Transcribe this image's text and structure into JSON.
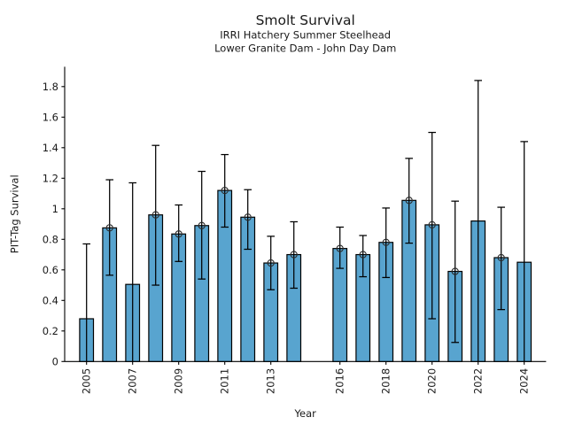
{
  "chart_data": {
    "type": "bar",
    "title": "Smolt Survival",
    "subtitle_lines": [
      "IRRI Hatchery Summer Steelhead",
      "Lower Granite Dam - John Day Dam"
    ],
    "xlabel": "Year",
    "ylabel": "PIT-Tag Survival",
    "xlim": [
      2004.05,
      2024.95
    ],
    "ylim": [
      0,
      1.93
    ],
    "grid": false,
    "legend": null,
    "missing_years": [
      2015
    ],
    "xticks": {
      "values": [
        2005,
        2007,
        2009,
        2011,
        2013,
        2016,
        2018,
        2020,
        2022,
        2024
      ],
      "labels": [
        "2005",
        "2007",
        "2009",
        "2011",
        "2013",
        "2016",
        "2018",
        "2020",
        "2022",
        "2024"
      ],
      "rotation_degrees": 90
    },
    "yticks": {
      "values": [
        0,
        0.2,
        0.4,
        0.6,
        0.8,
        1.0,
        1.2,
        1.4,
        1.6,
        1.8
      ],
      "labels": [
        "0",
        "0.2",
        "0.4",
        "0.6",
        "0.8",
        "1",
        "1.2",
        "1.4",
        "1.6",
        "1.8"
      ]
    },
    "bars": [
      {
        "year": 2005,
        "survival": 0.28,
        "ci_low": 0.0,
        "ci_high": 0.77,
        "ci_low_cap_visible": false,
        "marker": false
      },
      {
        "year": 2006,
        "survival": 0.875,
        "ci_low": 0.565,
        "ci_high": 1.19,
        "ci_low_cap_visible": true,
        "marker": true
      },
      {
        "year": 2007,
        "survival": 0.505,
        "ci_low": 0.0,
        "ci_high": 1.17,
        "ci_low_cap_visible": false,
        "marker": false
      },
      {
        "year": 2008,
        "survival": 0.96,
        "ci_low": 0.5,
        "ci_high": 1.415,
        "ci_low_cap_visible": true,
        "marker": true
      },
      {
        "year": 2009,
        "survival": 0.835,
        "ci_low": 0.655,
        "ci_high": 1.025,
        "ci_low_cap_visible": true,
        "marker": true
      },
      {
        "year": 2010,
        "survival": 0.89,
        "ci_low": 0.54,
        "ci_high": 1.245,
        "ci_low_cap_visible": true,
        "marker": true
      },
      {
        "year": 2011,
        "survival": 1.12,
        "ci_low": 0.88,
        "ci_high": 1.355,
        "ci_low_cap_visible": true,
        "marker": true
      },
      {
        "year": 2012,
        "survival": 0.945,
        "ci_low": 0.735,
        "ci_high": 1.125,
        "ci_low_cap_visible": true,
        "marker": true
      },
      {
        "year": 2013,
        "survival": 0.645,
        "ci_low": 0.47,
        "ci_high": 0.82,
        "ci_low_cap_visible": true,
        "marker": true
      },
      {
        "year": 2014,
        "survival": 0.7,
        "ci_low": 0.48,
        "ci_high": 0.915,
        "ci_low_cap_visible": true,
        "marker": true
      },
      {
        "year": 2016,
        "survival": 0.74,
        "ci_low": 0.61,
        "ci_high": 0.88,
        "ci_low_cap_visible": true,
        "marker": true
      },
      {
        "year": 2017,
        "survival": 0.7,
        "ci_low": 0.555,
        "ci_high": 0.825,
        "ci_low_cap_visible": true,
        "marker": true
      },
      {
        "year": 2018,
        "survival": 0.78,
        "ci_low": 0.55,
        "ci_high": 1.005,
        "ci_low_cap_visible": true,
        "marker": true
      },
      {
        "year": 2019,
        "survival": 1.055,
        "ci_low": 0.775,
        "ci_high": 1.33,
        "ci_low_cap_visible": true,
        "marker": true
      },
      {
        "year": 2020,
        "survival": 0.895,
        "ci_low": 0.28,
        "ci_high": 1.5,
        "ci_low_cap_visible": true,
        "marker": true
      },
      {
        "year": 2021,
        "survival": 0.59,
        "ci_low": 0.125,
        "ci_high": 1.05,
        "ci_low_cap_visible": true,
        "marker": true
      },
      {
        "year": 2022,
        "survival": 0.92,
        "ci_low": 0.0,
        "ci_high": 1.84,
        "ci_low_cap_visible": false,
        "marker": false
      },
      {
        "year": 2023,
        "survival": 0.68,
        "ci_low": 0.34,
        "ci_high": 1.01,
        "ci_low_cap_visible": true,
        "marker": true
      },
      {
        "year": 2024,
        "survival": 0.65,
        "ci_low": 0.0,
        "ci_high": 1.44,
        "ci_low_cap_visible": false,
        "marker": false
      }
    ],
    "colors": {
      "bar_fill": "#58A4CF",
      "bar_edge": "#000000",
      "error_bar": "#000000",
      "marker_edge": "#2b2b2b",
      "axis": "#000000",
      "text": "#1a1a1a",
      "background": "#ffffff"
    }
  }
}
